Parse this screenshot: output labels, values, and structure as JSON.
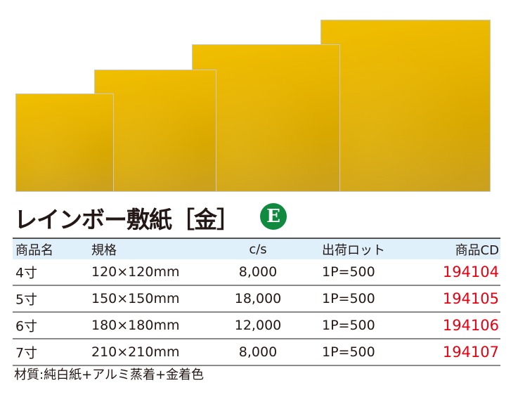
{
  "product_images": [
    {
      "name": "4寸",
      "color": "#e6b300"
    },
    {
      "name": "5寸",
      "color": "#e6b300"
    },
    {
      "name": "6寸",
      "color": "#d9a800"
    },
    {
      "name": "7寸",
      "color": "#e6b300"
    }
  ],
  "title": "レインボー敷紙［金］",
  "badge": "E",
  "badge_color": "#0f8a3f",
  "table": {
    "headers": [
      "商品名",
      "規格",
      "c/s",
      "出荷ロット",
      "商品CD"
    ],
    "rows": [
      {
        "name": "4寸",
        "spec": "120×120mm",
        "cs": "8,000",
        "lot": "1P=500",
        "code": "194104"
      },
      {
        "name": "5寸",
        "spec": "150×150mm",
        "cs": "18,000",
        "lot": "1P=500",
        "code": "194105"
      },
      {
        "name": "6寸",
        "spec": "180×180mm",
        "cs": "12,000",
        "lot": "1P=500",
        "code": "194106"
      },
      {
        "name": "7寸",
        "spec": "210×210mm",
        "cs": "8,000",
        "lot": "1P=500",
        "code": "194107"
      }
    ],
    "code_color": "#e60012",
    "header_bg": "#dff0fb"
  },
  "material": "材質:純白紙+アルミ蒸着+金着色"
}
